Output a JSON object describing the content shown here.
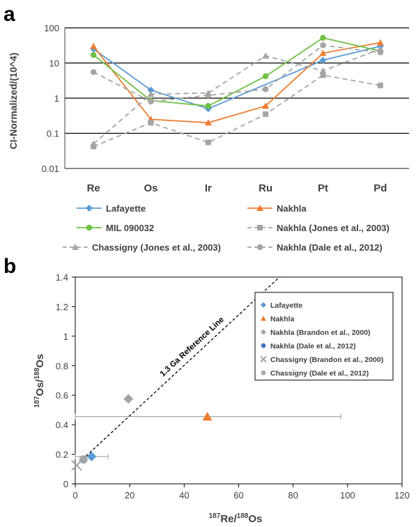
{
  "chart_data": [
    {
      "panel_label": "a",
      "type": "line",
      "ylabel": "CI-Normalized/(10^4)",
      "yscale": "log",
      "ylim": [
        0.01,
        100
      ],
      "yticks": [
        "0.01",
        "0.1",
        "1",
        "10",
        "100"
      ],
      "categories": [
        "Re",
        "Os",
        "Ir",
        "Ru",
        "Pt",
        "Pd"
      ],
      "grid": "horizontal",
      "legend_position": "bottom",
      "series": [
        {
          "name": "Lafayette",
          "color": "#5b9bd5",
          "marker": "diamond",
          "style": "solid",
          "values": [
            25,
            1.7,
            0.5,
            null,
            12,
            30
          ]
        },
        {
          "name": "Nakhla",
          "color": "#ed7d31",
          "marker": "triangle",
          "style": "solid",
          "values": [
            30,
            0.25,
            0.2,
            0.6,
            19,
            38
          ]
        },
        {
          "name": "MIL 090032",
          "color": "#70c046",
          "marker": "circle",
          "style": "solid",
          "values": [
            17,
            0.85,
            0.6,
            4.2,
            52,
            22
          ]
        },
        {
          "name": "Nakhla (Jones et al., 2003)",
          "color": "#a5a5a5",
          "marker": "square",
          "style": "dashed",
          "values": [
            0.042,
            0.2,
            0.055,
            0.35,
            4.5,
            2.3
          ]
        },
        {
          "name": "Chassigny (Jones et al., 2003)",
          "color": "#a5a5a5",
          "marker": "triangle",
          "style": "dashed",
          "values": [
            0.05,
            1.3,
            1.4,
            16,
            6,
            25
          ]
        },
        {
          "name": "Nakhla (Dale et al., 2012)",
          "color": "#a5a5a5",
          "marker": "circle",
          "style": "dashed",
          "values": [
            5.5,
            0.8,
            1.2,
            1.8,
            32,
            20
          ]
        }
      ]
    },
    {
      "panel_label": "b",
      "type": "scatter",
      "xlabel_sup1": "187",
      "xlabel_main1": "Re/",
      "xlabel_sup2": "188",
      "xlabel_main2": "Os",
      "ylabel_sup1": "187",
      "ylabel_main1": "Os/",
      "ylabel_sup2": "188",
      "ylabel_main2": "Os",
      "xlim": [
        0,
        120
      ],
      "ylim": [
        0,
        1.4
      ],
      "xticks": [
        "0",
        "20",
        "40",
        "60",
        "80",
        "100",
        "120"
      ],
      "yticks": [
        "0",
        "0.2",
        "0.4",
        "0.6",
        "0.8",
        "1",
        "1.2",
        "1.4"
      ],
      "legend_position": "top-right",
      "reference_line": {
        "label": "1.3 Ga Reference Line",
        "x": [
          0,
          75
        ],
        "y": [
          0.12,
          1.4
        ]
      },
      "series": [
        {
          "name": "Lafayette",
          "color": "#5b9bd5",
          "marker": "diamond",
          "points": [
            [
              6,
              0.185
            ]
          ],
          "x_error": [
            [
              0,
              12
            ]
          ]
        },
        {
          "name": "Nakhla",
          "color": "#ed7d31",
          "marker": "triangle",
          "points": [
            [
              48.5,
              0.455
            ]
          ],
          "x_error": [
            [
              0,
              97.5
            ]
          ]
        },
        {
          "name": "Nakhla (Brandon et al., 2000)",
          "color": "#a5a5a5",
          "marker": "diamond",
          "points": [
            [
              19.5,
              0.575
            ]
          ]
        },
        {
          "name": "Nakhla (Dale et al., 2012)",
          "color": "#4472c4",
          "marker": "circle",
          "points": []
        },
        {
          "name": "Chassigny (Brandon et al., 2000)",
          "color": "#a5a5a5",
          "marker": "x",
          "points": [
            [
              0.5,
              0.125
            ]
          ]
        },
        {
          "name": "Chassigny (Dale et al., 2012)",
          "color": "#a5a5a5",
          "marker": "circle",
          "points": [
            [
              3,
              0.165
            ]
          ]
        }
      ]
    }
  ]
}
